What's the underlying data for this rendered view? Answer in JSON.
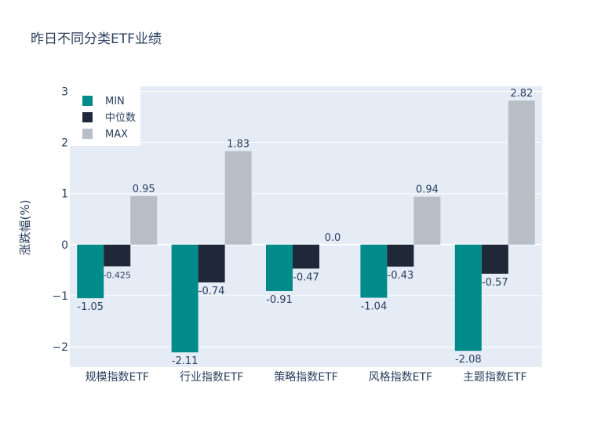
{
  "chart_data": {
    "type": "bar",
    "title": "昨日不同分类ETF业绩",
    "ylabel": "涨跌幅(%)",
    "xlabel": "",
    "categories": [
      "规模指数ETF",
      "行业指数ETF",
      "策略指数ETF",
      "风格指数ETF",
      "主题指数ETF"
    ],
    "series": [
      {
        "name": "MIN",
        "color": "#008b8b",
        "values": [
          -1.05,
          -2.11,
          -0.91,
          -1.04,
          -2.08
        ],
        "labels": [
          "-1.05",
          "-2.11",
          "-0.91",
          "-1.04",
          "-2.08"
        ]
      },
      {
        "name": "中位数",
        "color": "#1f2839",
        "values": [
          -0.425,
          -0.74,
          -0.47,
          -0.43,
          -0.57
        ],
        "labels": [
          "-0.425",
          "-0.74",
          "-0.47",
          "-0.43",
          "-0.57"
        ]
      },
      {
        "name": "MAX",
        "color": "#b8bec6",
        "values": [
          0.95,
          1.83,
          0.0,
          0.94,
          2.82
        ],
        "labels": [
          "0.95",
          "1.83",
          "0.0",
          "0.94",
          "2.82"
        ]
      }
    ],
    "yticks": [
      -2,
      -1,
      0,
      1,
      2,
      3
    ],
    "ytick_labels": [
      "−2",
      "−1",
      "0",
      "1",
      "2",
      "3"
    ],
    "ylim": [
      -2.4,
      3.1
    ],
    "grid": true,
    "legend_position": "top-left"
  }
}
